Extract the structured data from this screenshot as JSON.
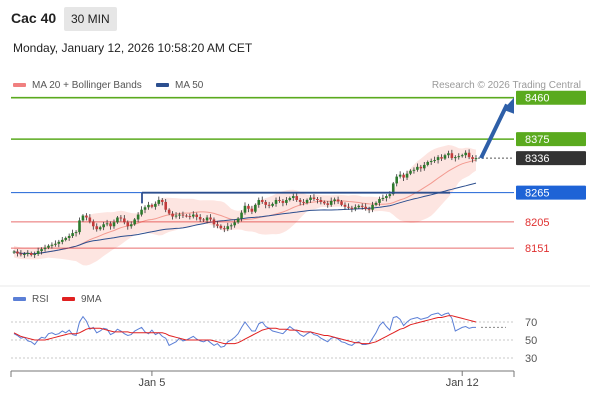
{
  "header": {
    "instrument": "Cac 40",
    "timeframe": "30 MIN",
    "datetime": "Monday, January 12, 2026 10:58:20 AM CET"
  },
  "legend": [
    {
      "label": "MA 20 + Bollinger Bands",
      "color": "#f08080"
    },
    {
      "label": "MA 50",
      "color": "#2c4f8f"
    }
  ],
  "credit": "Research © 2026 Trading Central",
  "rsi_legend": [
    {
      "label": "RSI",
      "color": "#5b7fd6"
    },
    {
      "label": "9MA",
      "color": "#e02020"
    }
  ],
  "chart_data": {
    "type": "candlestick",
    "y_axis": {
      "min": 8100,
      "max": 8480
    },
    "levels": [
      {
        "value": 8460,
        "label": "8460",
        "kind": "resistance",
        "color": "#5aaa1e",
        "tag": "filled"
      },
      {
        "value": 8375,
        "label": "8375",
        "kind": "resistance",
        "color": "#5aaa1e",
        "tag": "filled"
      },
      {
        "value": 8336,
        "label": "8336",
        "kind": "last-price",
        "color": "#333333",
        "tag": "filled"
      },
      {
        "value": 8265,
        "label": "8265",
        "kind": "pivot",
        "color": "#1e63d6",
        "tag": "filled"
      },
      {
        "value": 8205,
        "label": "8205",
        "kind": "support",
        "color": "#e03030",
        "tag": "text"
      },
      {
        "value": 8151,
        "label": "8151",
        "kind": "support",
        "color": "#e03030",
        "tag": "text"
      }
    ],
    "x_tick_labels": [
      "Jan 5",
      "Jan 12"
    ],
    "closes": [
      8144,
      8140,
      8138,
      8139,
      8141,
      8137,
      8139,
      8145,
      8149,
      8152,
      8156,
      8158,
      8160,
      8164,
      8168,
      8172,
      8176,
      8182,
      8184,
      8208,
      8218,
      8214,
      8206,
      8196,
      8190,
      8194,
      8200,
      8202,
      8196,
      8204,
      8214,
      8212,
      8204,
      8196,
      8200,
      8210,
      8220,
      8230,
      8235,
      8240,
      8236,
      8242,
      8250,
      8246,
      8230,
      8222,
      8216,
      8218,
      8220,
      8218,
      8217,
      8216,
      8220,
      8215,
      8210,
      8208,
      8214,
      8210,
      8200,
      8197,
      8192,
      8190,
      8196,
      8198,
      8204,
      8212,
      8224,
      8238,
      8232,
      8226,
      8240,
      8250,
      8246,
      8240,
      8238,
      8242,
      8250,
      8248,
      8244,
      8250,
      8254,
      8258,
      8250,
      8246,
      8244,
      8250,
      8255,
      8252,
      8250,
      8246,
      8243,
      8240,
      8248,
      8251,
      8247,
      8240,
      8236,
      8234,
      8232,
      8235,
      8238,
      8236,
      8232,
      8230,
      8240,
      8244,
      8252,
      8254,
      8258,
      8262,
      8284,
      8298,
      8302,
      8296,
      8304,
      8310,
      8312,
      8318,
      8315,
      8322,
      8328,
      8330,
      8332,
      8338,
      8335,
      8342,
      8346,
      8336,
      8338,
      8340,
      8342,
      8347,
      8338,
      8334,
      8336
    ],
    "rsi": {
      "levels": [
        70,
        50,
        30
      ],
      "values": [
        57,
        55,
        52,
        53,
        49,
        48,
        45,
        50,
        53,
        52,
        57,
        58,
        56,
        57,
        60,
        58,
        61,
        56,
        55,
        70,
        76,
        71,
        62,
        64,
        58,
        60,
        63,
        62,
        56,
        58,
        62,
        60,
        57,
        55,
        56,
        60,
        62,
        64,
        59,
        57,
        61,
        56,
        58,
        54,
        52,
        44,
        46,
        48,
        52,
        49,
        50,
        52,
        54,
        51,
        49,
        48,
        50,
        47,
        44,
        46,
        42,
        43,
        48,
        50,
        53,
        57,
        64,
        70,
        65,
        60,
        60,
        68,
        70,
        65,
        63,
        60,
        59,
        58,
        57,
        61,
        65,
        62,
        60,
        56,
        54,
        57,
        59,
        56,
        55,
        52,
        50,
        48,
        52,
        53,
        51,
        48,
        47,
        45,
        44,
        47,
        48,
        45,
        45,
        46,
        52,
        58,
        66,
        70,
        65,
        61,
        75,
        76,
        73,
        66,
        70,
        73,
        74,
        75,
        73,
        74,
        75,
        78,
        79,
        80,
        77,
        79,
        80,
        74,
        60,
        62,
        64,
        65,
        63,
        64,
        64
      ],
      "ma9_values": [
        58,
        56,
        54,
        53,
        52,
        51,
        50,
        50,
        50,
        50,
        51,
        52,
        53,
        54,
        55,
        56,
        57,
        57,
        57,
        58,
        60,
        62,
        63,
        63,
        63,
        63,
        62,
        61,
        60,
        59,
        59,
        59,
        59,
        59,
        58,
        58,
        58,
        58,
        58,
        58,
        58,
        58,
        58,
        58,
        57,
        55,
        54,
        53,
        52,
        51,
        50,
        50,
        50,
        50,
        50,
        50,
        50,
        50,
        49,
        48,
        47,
        46,
        46,
        46,
        46,
        47,
        49,
        51,
        53,
        55,
        57,
        59,
        61,
        62,
        63,
        63,
        63,
        62,
        62,
        62,
        61,
        61,
        61,
        60,
        59,
        59,
        59,
        58,
        57,
        56,
        55,
        55,
        54,
        53,
        52,
        51,
        50,
        49,
        48,
        47,
        47,
        46,
        46,
        46,
        47,
        48,
        50,
        52,
        54,
        56,
        58,
        60,
        62,
        63,
        65,
        67,
        68,
        69,
        70,
        71,
        72,
        73,
        74,
        75,
        75,
        76,
        77,
        77,
        76,
        75,
        74,
        73,
        72,
        71,
        70
      ]
    }
  }
}
